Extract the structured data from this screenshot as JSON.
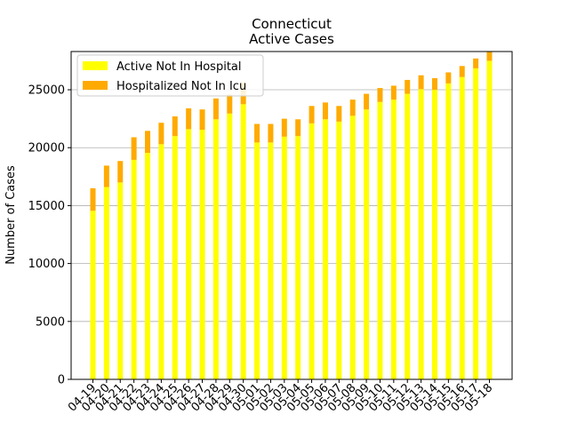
{
  "chart_data": {
    "type": "bar",
    "stacked": true,
    "title": "Connecticut",
    "subtitle": "Active Cases",
    "xlabel": "",
    "ylabel": "Number of Cases",
    "ylim": [
      0,
      28300
    ],
    "yticks": [
      0,
      5000,
      10000,
      15000,
      20000,
      25000
    ],
    "grid": "horizontal",
    "legend_position": "top-left",
    "categories": [
      "04-19",
      "04-20",
      "04-21",
      "04-22",
      "04-23",
      "04-24",
      "04-25",
      "04-26",
      "04-27",
      "04-28",
      "04-29",
      "04-30",
      "05-01",
      "05-02",
      "05-03",
      "05-04",
      "05-05",
      "05-06",
      "05-07",
      "05-08",
      "05-09",
      "05-10",
      "05-11",
      "05-12",
      "05-13",
      "05-14",
      "05-15",
      "05-16",
      "05-17",
      "05-18"
    ],
    "series": [
      {
        "name": "Active Not In Hospital",
        "color": "#ffff00",
        "values": [
          14550,
          16600,
          17000,
          18950,
          19550,
          20300,
          21000,
          21600,
          21550,
          22450,
          22950,
          23750,
          20450,
          20450,
          20950,
          21000,
          22100,
          22450,
          22250,
          22750,
          23300,
          23950,
          24150,
          24650,
          25050,
          25000,
          25550,
          26100,
          26850,
          27500
        ]
      },
      {
        "name": "Hospitalized Not In Icu",
        "color": "#ffaa00",
        "values": [
          1950,
          1850,
          1850,
          1950,
          1900,
          1850,
          1700,
          1800,
          1750,
          1800,
          1650,
          1850,
          1600,
          1600,
          1550,
          1450,
          1500,
          1450,
          1350,
          1400,
          1350,
          1200,
          1200,
          1200,
          1200,
          1000,
          950,
          950,
          850,
          800
        ]
      }
    ]
  }
}
